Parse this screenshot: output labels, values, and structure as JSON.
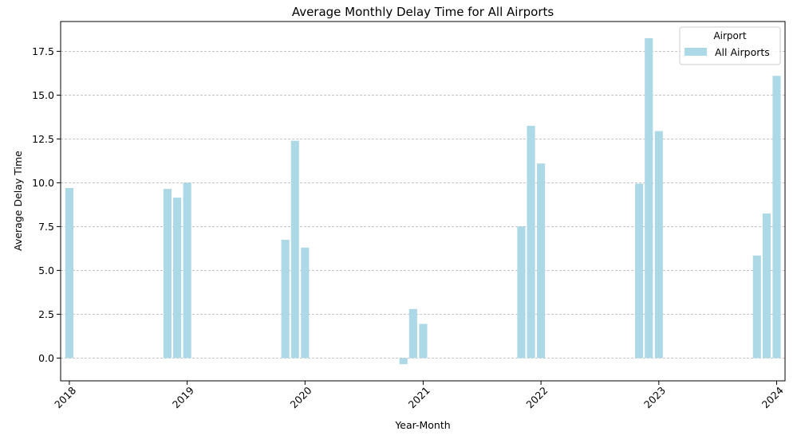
{
  "chart_data": {
    "type": "bar",
    "title": "Average Monthly Delay Time for All Airports",
    "xlabel": "Year-Month",
    "ylabel": "Average Delay Time",
    "xlim": [
      "2017-12-05",
      "2024-01-27"
    ],
    "ylim": [
      -1.3,
      19.2
    ],
    "grid": "y dashed",
    "legend": {
      "title": "Airport",
      "placement": "top-right",
      "entries": [
        "All Airports"
      ]
    },
    "x_ticks": [
      "2018",
      "2019",
      "2020",
      "2021",
      "2022",
      "2023",
      "2024"
    ],
    "y_ticks": [
      "0.0",
      "2.5",
      "5.0",
      "7.5",
      "10.0",
      "12.5",
      "15.0",
      "17.5"
    ],
    "series": [
      {
        "name": "All Airports",
        "color": "#add8e6",
        "points": [
          {
            "x": "2018-01",
            "y": 9.7
          },
          {
            "x": "2018-11",
            "y": 9.65
          },
          {
            "x": "2018-12",
            "y": 9.15
          },
          {
            "x": "2019-01",
            "y": 10.0
          },
          {
            "x": "2019-11",
            "y": 6.75
          },
          {
            "x": "2019-12",
            "y": 12.4
          },
          {
            "x": "2020-01",
            "y": 6.3
          },
          {
            "x": "2020-11",
            "y": -0.35
          },
          {
            "x": "2020-12",
            "y": 2.8
          },
          {
            "x": "2021-01",
            "y": 1.95
          },
          {
            "x": "2021-11",
            "y": 7.5
          },
          {
            "x": "2021-12",
            "y": 13.25
          },
          {
            "x": "2022-01",
            "y": 11.1
          },
          {
            "x": "2022-11",
            "y": 9.95
          },
          {
            "x": "2022-12",
            "y": 18.25
          },
          {
            "x": "2023-01",
            "y": 12.95
          },
          {
            "x": "2023-11",
            "y": 5.85
          },
          {
            "x": "2023-12",
            "y": 8.25
          },
          {
            "x": "2024-01",
            "y": 16.1
          }
        ]
      }
    ]
  }
}
